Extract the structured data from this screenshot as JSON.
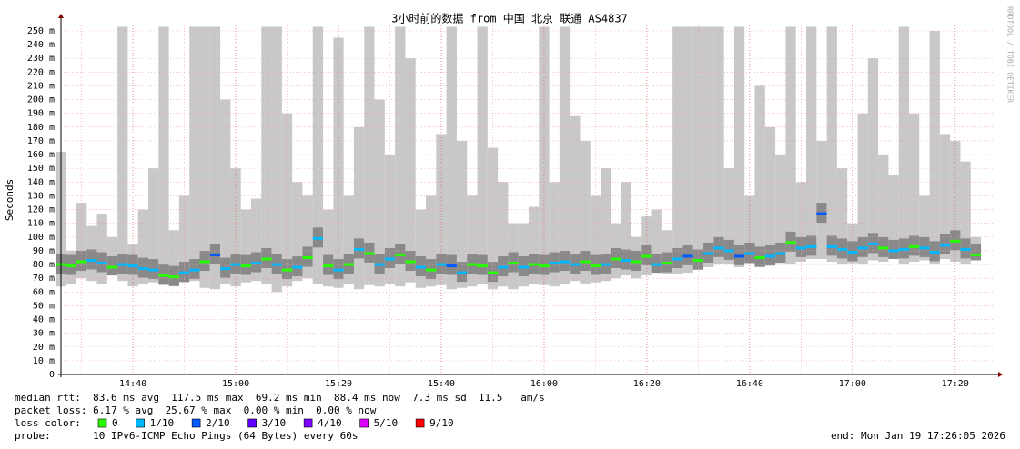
{
  "chart_data": {
    "type": "smokeping",
    "title": "3小时前的数据 from 中国 北京 联通 AS4837",
    "y_label": "Seconds",
    "watermark": "RRDTOOL / TOBI OETIKER",
    "xlim": [
      866,
      1048
    ],
    "xticks": [
      {
        "value": 880,
        "label": "14:40"
      },
      {
        "value": 900,
        "label": "15:00"
      },
      {
        "value": 920,
        "label": "15:20"
      },
      {
        "value": 940,
        "label": "15:40"
      },
      {
        "value": 960,
        "label": "16:00"
      },
      {
        "value": 980,
        "label": "16:20"
      },
      {
        "value": 1000,
        "label": "16:40"
      },
      {
        "value": 1020,
        "label": "17:00"
      },
      {
        "value": 1040,
        "label": "17:20"
      }
    ],
    "xgrid_minor": [
      870,
      890,
      910,
      930,
      950,
      970,
      990,
      1010,
      1030
    ],
    "ylim": [
      0,
      250
    ],
    "yticks": [
      0,
      {
        "value": 10,
        "label": "10 m"
      },
      {
        "value": 20,
        "label": "20 m"
      },
      {
        "value": 30,
        "label": "30 m"
      },
      {
        "value": 40,
        "label": "40 m"
      },
      {
        "value": 50,
        "label": "50 m"
      },
      {
        "value": 60,
        "label": "60 m"
      },
      {
        "value": 70,
        "label": "70 m"
      },
      {
        "value": 80,
        "label": "80 m"
      },
      {
        "value": 90,
        "label": "90 m"
      },
      {
        "value": 100,
        "label": "100 m"
      },
      {
        "value": 110,
        "label": "110 m"
      },
      {
        "value": 120,
        "label": "120 m"
      },
      {
        "value": 130,
        "label": "130 m"
      },
      {
        "value": 140,
        "label": "140 m"
      },
      {
        "value": 150,
        "label": "150 m"
      },
      {
        "value": 160,
        "label": "160 m"
      },
      {
        "value": 170,
        "label": "170 m"
      },
      {
        "value": 180,
        "label": "180 m"
      },
      {
        "value": 190,
        "label": "190 m"
      },
      {
        "value": 200,
        "label": "200 m"
      },
      {
        "value": 210,
        "label": "210 m"
      },
      {
        "value": 220,
        "label": "220 m"
      },
      {
        "value": 230,
        "label": "230 m"
      },
      {
        "value": 240,
        "label": "240 m"
      },
      {
        "value": 250,
        "label": "250 m"
      }
    ],
    "grid": true,
    "x": [
      866,
      868,
      870,
      872,
      874,
      876,
      878,
      880,
      882,
      884,
      886,
      888,
      890,
      892,
      894,
      896,
      898,
      900,
      902,
      904,
      906,
      908,
      910,
      912,
      914,
      916,
      918,
      920,
      922,
      924,
      926,
      928,
      930,
      932,
      934,
      936,
      938,
      940,
      942,
      944,
      946,
      948,
      950,
      952,
      954,
      956,
      958,
      960,
      962,
      964,
      966,
      968,
      970,
      972,
      974,
      976,
      978,
      980,
      982,
      984,
      986,
      988,
      990,
      992,
      994,
      996,
      998,
      1000,
      1002,
      1004,
      1006,
      1008,
      1010,
      1012,
      1014,
      1016,
      1018,
      1020,
      1022,
      1024,
      1026,
      1028,
      1030,
      1032,
      1034,
      1036,
      1038,
      1040,
      1042,
      1044
    ],
    "median": [
      80,
      79,
      82,
      83,
      81,
      78,
      80,
      79,
      77,
      76,
      72,
      71,
      74,
      76,
      82,
      87,
      77,
      80,
      79,
      81,
      84,
      80,
      76,
      78,
      85,
      99,
      79,
      76,
      80,
      91,
      88,
      80,
      84,
      87,
      82,
      78,
      76,
      80,
      79,
      74,
      80,
      79,
      74,
      78,
      81,
      78,
      80,
      79,
      81,
      82,
      80,
      82,
      79,
      80,
      84,
      83,
      82,
      86,
      80,
      81,
      84,
      86,
      83,
      88,
      92,
      90,
      86,
      88,
      85,
      86,
      88,
      96,
      92,
      93,
      117,
      93,
      91,
      89,
      92,
      95,
      92,
      90,
      91,
      93,
      92,
      89,
      94,
      97,
      91,
      87
    ],
    "min": [
      64,
      66,
      70,
      68,
      66,
      72,
      68,
      64,
      66,
      67,
      65,
      64,
      67,
      68,
      63,
      62,
      66,
      64,
      67,
      68,
      66,
      60,
      64,
      68,
      70,
      66,
      64,
      63,
      66,
      62,
      65,
      64,
      66,
      64,
      67,
      63,
      64,
      65,
      62,
      63,
      64,
      66,
      62,
      64,
      62,
      64,
      66,
      65,
      64,
      66,
      68,
      66,
      67,
      68,
      70,
      72,
      70,
      72,
      74,
      73,
      73,
      74,
      76,
      78,
      80,
      80,
      78,
      80,
      78,
      79,
      81,
      80,
      82,
      84,
      84,
      82,
      80,
      81,
      80,
      83,
      82,
      84,
      80,
      82,
      83,
      80,
      84,
      82,
      80,
      83
    ],
    "max": [
      162,
      90,
      125,
      108,
      117,
      100,
      253,
      95,
      120,
      150,
      253,
      105,
      130,
      253,
      253,
      253,
      200,
      150,
      120,
      128,
      253,
      253,
      190,
      140,
      130,
      253,
      120,
      245,
      130,
      180,
      253,
      200,
      160,
      253,
      230,
      120,
      130,
      175,
      253,
      170,
      130,
      253,
      165,
      140,
      110,
      110,
      122,
      253,
      140,
      253,
      188,
      170,
      130,
      150,
      110,
      140,
      100,
      115,
      120,
      105,
      253,
      253,
      253,
      253,
      253,
      150,
      253,
      130,
      210,
      180,
      160,
      253,
      140,
      253,
      170,
      253,
      150,
      110,
      190,
      230,
      160,
      145,
      253,
      190,
      130,
      250,
      175,
      170,
      155,
      100
    ],
    "loss": [
      0,
      0,
      0,
      1,
      1,
      0,
      1,
      1,
      1,
      1,
      0,
      0,
      1,
      1,
      0,
      2,
      1,
      1,
      0,
      1,
      0,
      1,
      0,
      1,
      0,
      1,
      0,
      1,
      0,
      1,
      0,
      1,
      1,
      0,
      0,
      1,
      0,
      1,
      2,
      1,
      0,
      0,
      0,
      1,
      0,
      1,
      0,
      0,
      1,
      1,
      1,
      0,
      0,
      1,
      0,
      1,
      0,
      0,
      1,
      0,
      1,
      2,
      0,
      1,
      1,
      1,
      2,
      1,
      0,
      1,
      1,
      0,
      1,
      1,
      2,
      1,
      1,
      1,
      1,
      1,
      0,
      1,
      1,
      0,
      1,
      1,
      1,
      0,
      1,
      0
    ],
    "smoke_color": "#c8c8c8",
    "loss_title": "loss color:",
    "loss_colors": [
      {
        "value": 0,
        "label": "0",
        "color": "#26ff00"
      },
      {
        "value": 1,
        "label": "1/10",
        "color": "#00b8ff"
      },
      {
        "value": 2,
        "label": "2/10",
        "color": "#0059ff"
      },
      {
        "value": 3,
        "label": "3/10",
        "color": "#5e00ff"
      },
      {
        "value": 4,
        "label": "4/10",
        "color": "#7e00ff"
      },
      {
        "value": 5,
        "label": "5/10",
        "color": "#dd00ff"
      },
      {
        "value": 9,
        "label": "9/10",
        "color": "#ff0000"
      }
    ],
    "stats": [
      "median rtt:  83.6 ms avg  117.5 ms max  69.2 ms min  88.4 ms now  7.3 ms sd  11.5   am/s",
      "packet loss: 6.17 % avg  25.67 % max  0.00 % min  0.00 % now"
    ],
    "probe": "probe:       10 IPv6-ICMP Echo Pings (64 Bytes) every 60s",
    "end": "end: Mon Jan 19 17:26:05 2026"
  }
}
